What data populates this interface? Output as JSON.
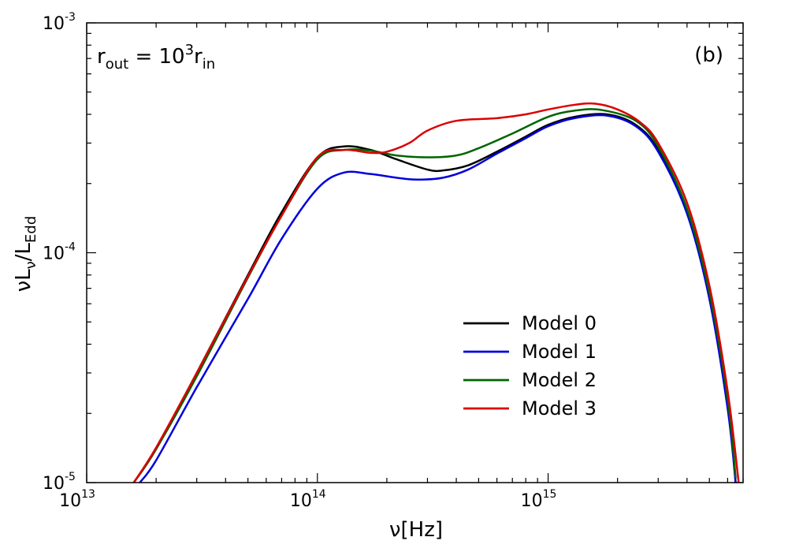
{
  "chart_data": {
    "type": "line",
    "x_scale": "log",
    "y_scale": "log",
    "xlim": [
      10000000000000.0,
      7000000000000000.0
    ],
    "ylim": [
      1e-05,
      0.001
    ],
    "xlabel": {
      "main": "ν[Hz]"
    },
    "ylabel": {
      "main": "νL",
      "sub1": "ν",
      "mid": "/L",
      "sub2": "Edd"
    },
    "x_tick_labels": [
      {
        "value": 10000000000000.0,
        "base": "10",
        "exp": "13"
      },
      {
        "value": 100000000000000.0,
        "base": "10",
        "exp": "14"
      },
      {
        "value": 1000000000000000.0,
        "base": "10",
        "exp": "15"
      }
    ],
    "y_tick_labels": [
      {
        "value": 1e-05,
        "base": "10",
        "exp": "-5"
      },
      {
        "value": 0.0001,
        "base": "10",
        "exp": "-4"
      },
      {
        "value": 0.001,
        "base": "10",
        "exp": "-3"
      }
    ],
    "annotation": {
      "r1": "r",
      "sub1": "out",
      "eq": " = 10",
      "sup": "3",
      "r2": "r",
      "sub2": "in"
    },
    "panel_label": "(b)",
    "legend": {
      "position": "lower-right-center"
    },
    "series": [
      {
        "name": "Model 0",
        "color": "#000000",
        "x": [
          16000000000000.0,
          20000000000000.0,
          30000000000000.0,
          50000000000000.0,
          70000000000000.0,
          100000000000000.0,
          130000000000000.0,
          170000000000000.0,
          220000000000000.0,
          300000000000000.0,
          350000000000000.0,
          450000000000000.0,
          600000000000000.0,
          800000000000000.0,
          1000000000000000.0,
          1300000000000000.0,
          1800000000000000.0,
          2400000000000000.0,
          3000000000000000.0,
          4000000000000000.0,
          5000000000000000.0,
          6000000000000000.0,
          6500000000000000.0
        ],
        "y": [
          1e-05,
          1.4e-05,
          3e-05,
          8e-05,
          0.00015,
          0.00026,
          0.00029,
          0.00028,
          0.000255,
          0.00023,
          0.000228,
          0.00024,
          0.000275,
          0.00032,
          0.00036,
          0.00039,
          0.0004,
          0.00036,
          0.00028,
          0.00015,
          6.5e-05,
          2.2e-05,
          1e-05
        ]
      },
      {
        "name": "Model 1",
        "color": "#0000dd",
        "x": [
          17000000000000.0,
          20000000000000.0,
          30000000000000.0,
          50000000000000.0,
          70000000000000.0,
          100000000000000.0,
          130000000000000.0,
          170000000000000.0,
          220000000000000.0,
          270000000000000.0,
          350000000000000.0,
          450000000000000.0,
          600000000000000.0,
          800000000000000.0,
          1000000000000000.0,
          1300000000000000.0,
          1800000000000000.0,
          2400000000000000.0,
          3000000000000000.0,
          4000000000000000.0,
          5000000000000000.0,
          6000000000000000.0,
          6500000000000000.0
        ],
        "y": [
          1e-05,
          1.25e-05,
          2.6e-05,
          6.3e-05,
          0.000115,
          0.00019,
          0.000223,
          0.00022,
          0.000212,
          0.000208,
          0.000212,
          0.00023,
          0.00027,
          0.000315,
          0.000355,
          0.000385,
          0.000395,
          0.000355,
          0.000275,
          0.000148,
          6.3e-05,
          2.1e-05,
          1e-05
        ]
      },
      {
        "name": "Model 2",
        "color": "#006400",
        "x": [
          16000000000000.0,
          20000000000000.0,
          30000000000000.0,
          50000000000000.0,
          70000000000000.0,
          100000000000000.0,
          130000000000000.0,
          170000000000000.0,
          220000000000000.0,
          300000000000000.0,
          400000000000000.0,
          500000000000000.0,
          700000000000000.0,
          1000000000000000.0,
          1300000000000000.0,
          1700000000000000.0,
          2400000000000000.0,
          3000000000000000.0,
          4000000000000000.0,
          5000000000000000.0,
          6000000000000000.0,
          6500000000000000.0
        ],
        "y": [
          1e-05,
          1.4e-05,
          2.9e-05,
          7.8e-05,
          0.000145,
          0.000255,
          0.00028,
          0.000278,
          0.000265,
          0.00026,
          0.000265,
          0.000285,
          0.00033,
          0.00039,
          0.000415,
          0.000418,
          0.000375,
          0.00029,
          0.000155,
          6.7e-05,
          2.3e-05,
          1.05e-05
        ]
      },
      {
        "name": "Model 3",
        "color": "#dd0000",
        "x": [
          16000000000000.0,
          20000000000000.0,
          30000000000000.0,
          50000000000000.0,
          70000000000000.0,
          100000000000000.0,
          130000000000000.0,
          170000000000000.0,
          200000000000000.0,
          250000000000000.0,
          300000000000000.0,
          400000000000000.0,
          600000000000000.0,
          800000000000000.0,
          1000000000000000.0,
          1300000000000000.0,
          1600000000000000.0,
          2000000000000000.0,
          2500000000000000.0,
          3000000000000000.0,
          4000000000000000.0,
          5000000000000000.0,
          6000000000000000.0,
          6700000000000000.0
        ],
        "y": [
          1e-05,
          1.42e-05,
          3e-05,
          7.9e-05,
          0.000145,
          0.00026,
          0.00028,
          0.000272,
          0.000275,
          0.0003,
          0.00034,
          0.000375,
          0.000385,
          0.0004,
          0.00042,
          0.00044,
          0.000445,
          0.00042,
          0.00037,
          0.0003,
          0.000165,
          7.2e-05,
          2.5e-05,
          1e-05
        ]
      }
    ]
  }
}
